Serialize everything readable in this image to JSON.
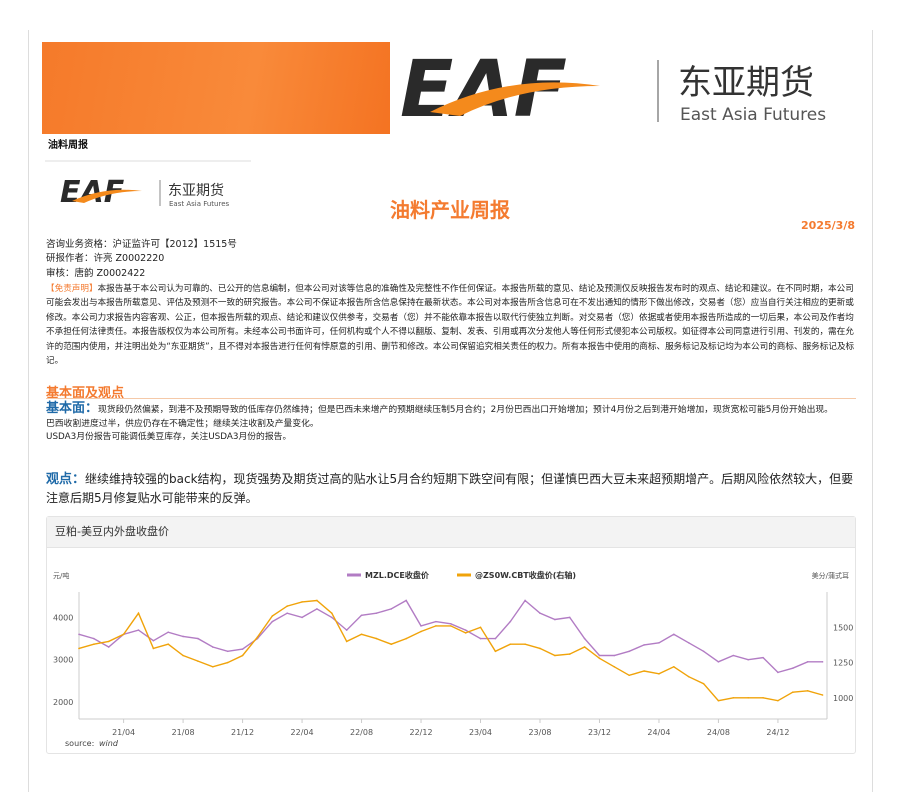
{
  "header": {
    "company_cn": "东亚期货",
    "company_en": "East Asia Futures",
    "logo": "EAF",
    "report_type": "油料周报"
  },
  "title": "油料产业周报",
  "date": "2025/3/8",
  "meta": {
    "license": "咨询业务资格：沪证监许可【2012】1515号",
    "author": "研报作者：许亮 Z0002220",
    "reviewer": "审核：唐韵 Z0002422"
  },
  "disclaimer": {
    "tag": "【免责声明】",
    "text": "本报告基于本公司认为可靠的、已公开的信息编制，但本公司对该等信息的准确性及完整性不作任何保证。本报告所载的意见、结论及预测仅反映报告发布时的观点、结论和建议。在不同时期，本公司可能会发出与本报告所载意见、评估及预测不一致的研究报告。本公司不保证本报告所含信息保持在最新状态。本公司对本报告所含信息可在不发出通知的情形下做出修改，交易者（您）应当自行关注相应的更新或修改。本公司力求报告内容客观、公正，但本报告所载的观点、结论和建议仅供参考，交易者（您）并不能依靠本报告以取代行使独立判断。对交易者（您）依据或者使用本报告所造成的一切后果，本公司及作者均不承担任何法律责任。本报告版权仅为本公司所有。未经本公司书面许可，任何机构或个人不得以翻版、复制、发表、引用或再次分发他人等任何形式侵犯本公司版权。如征得本公司同意进行引用、刊发的，需在允许的范围内使用，并注明出处为“东亚期货”，且不得对本报告进行任何有悖原意的引用、删节和修改。本公司保留追究相关责任的权力。所有本报告中使用的商标、服务标记及标记均为本公司的商标、服务标记及标记。"
  },
  "section": {
    "title": "基本面及观点",
    "basic_label": "基本面：",
    "basic_lines": [
      "现货段仍然偏紧，到港不及预期导致的低库存仍然维持；但是巴西未来增产的预期继续压制5月合约；2月份巴西出口开始增加；预计4月份之后到港开始增加，现货宽松可能5月份开始出现。",
      "巴西收割进度过半，供应仍存在不确定性；继续关注收割及产量变化。",
      "USDA3月份报告可能调低美豆库存，关注USDA3月份的报告。"
    ],
    "view_label": "观点：",
    "view_text": "继续维持较强的back结构，现货强势及期货过高的贴水让5月合约短期下跌空间有限；但谨慎巴西大豆未来超预期增产。后期风险依然较大，但要注意后期5月修复贴水可能带来的反弹。"
  },
  "chart_data": {
    "type": "line",
    "title": "豆粕-美豆内外盘收盘价",
    "ylabel": "元/吨",
    "y2label": "美分/蒲式耳",
    "source_label": "source:",
    "source": "wind",
    "legend_position": "top",
    "x": [
      "2021-01",
      "2021-02",
      "2021-03",
      "2021-04",
      "2021-05",
      "2021-06",
      "2021-07",
      "2021-08",
      "2021-09",
      "2021-10",
      "2021-11",
      "2021-12",
      "2022-01",
      "2022-02",
      "2022-03",
      "2022-04",
      "2022-05",
      "2022-06",
      "2022-07",
      "2022-08",
      "2022-09",
      "2022-10",
      "2022-11",
      "2022-12",
      "2023-01",
      "2023-02",
      "2023-03",
      "2023-04",
      "2023-05",
      "2023-06",
      "2023-07",
      "2023-08",
      "2023-09",
      "2023-10",
      "2023-11",
      "2023-12",
      "2024-01",
      "2024-02",
      "2024-03",
      "2024-04",
      "2024-05",
      "2024-06",
      "2024-07",
      "2024-08",
      "2024-09",
      "2024-10",
      "2024-11",
      "2024-12",
      "2025-01",
      "2025-02",
      "2025-03"
    ],
    "xticks": [
      "21/04",
      "21/08",
      "21/12",
      "22/04",
      "22/08",
      "22/12",
      "23/04",
      "23/08",
      "23/12",
      "24/04",
      "24/08",
      "24/12"
    ],
    "yticks": [
      2000,
      3000,
      4000
    ],
    "y2ticks": [
      1000,
      1250,
      1500
    ],
    "ylim": [
      1600,
      4600
    ],
    "y2lim": [
      850,
      1750
    ],
    "grid": false,
    "series": [
      {
        "name": "MZL.DCE收盘价",
        "axis": "left",
        "color": "#b27cc4",
        "values": [
          3600,
          3500,
          3300,
          3600,
          3700,
          3450,
          3650,
          3550,
          3500,
          3300,
          3200,
          3250,
          3500,
          3900,
          4100,
          4000,
          4200,
          4000,
          3700,
          4050,
          4100,
          4200,
          4400,
          3800,
          3900,
          3850,
          3700,
          3500,
          3500,
          3900,
          4400,
          4100,
          3950,
          4000,
          3500,
          3100,
          3100,
          3200,
          3350,
          3400,
          3600,
          3400,
          3200,
          2950,
          3100,
          3000,
          3050,
          2700,
          2800,
          2950,
          2950
        ]
      },
      {
        "name": "@ZS0W.CBT收盘价(右轴)",
        "axis": "right",
        "color": "#f0a30a",
        "values": [
          1350,
          1380,
          1400,
          1450,
          1600,
          1350,
          1380,
          1300,
          1260,
          1220,
          1250,
          1300,
          1430,
          1580,
          1650,
          1680,
          1690,
          1600,
          1400,
          1450,
          1420,
          1380,
          1420,
          1470,
          1510,
          1510,
          1460,
          1500,
          1330,
          1380,
          1380,
          1350,
          1300,
          1310,
          1360,
          1280,
          1220,
          1160,
          1190,
          1170,
          1220,
          1150,
          1100,
          980,
          1000,
          1000,
          1000,
          980,
          1040,
          1050,
          1020
        ]
      }
    ]
  }
}
